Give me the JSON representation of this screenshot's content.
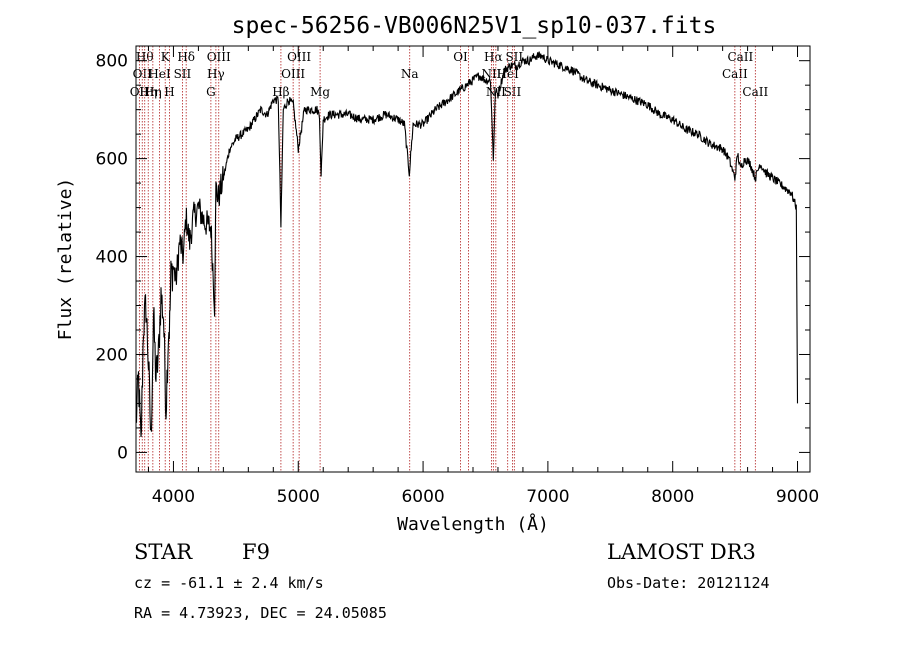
{
  "chart_data": {
    "type": "line",
    "title": "spec-56256-VB006N25V1_sp10-037.fits",
    "xlabel": "Wavelength (Å)",
    "ylabel": "Flux (relative)",
    "xlim": [
      3700,
      9100
    ],
    "ylim": [
      -40,
      830
    ],
    "x_ticks": [
      4000,
      5000,
      6000,
      7000,
      8000,
      9000
    ],
    "y_ticks": [
      0,
      200,
      400,
      600,
      800
    ],
    "x_minor_step": 200,
    "y_minor_step": 50,
    "line_color": "#000000",
    "marker_color": "#b22222",
    "spectrum": {
      "x": [
        3700,
        3720,
        3740,
        3760,
        3780,
        3800,
        3820,
        3840,
        3860,
        3880,
        3900,
        3920,
        3940,
        3960,
        3970,
        3980,
        4000,
        4020,
        4050,
        4080,
        4100,
        4130,
        4160,
        4200,
        4250,
        4300,
        4330,
        4340,
        4360,
        4400,
        4450,
        4500,
        4550,
        4600,
        4650,
        4700,
        4750,
        4800,
        4840,
        4861,
        4880,
        4920,
        4960,
        5000,
        5050,
        5100,
        5150,
        5170,
        5183,
        5200,
        5250,
        5300,
        5400,
        5500,
        5600,
        5700,
        5800,
        5850,
        5890,
        5920,
        6000,
        6100,
        6200,
        6300,
        6400,
        6450,
        6500,
        6540,
        6563,
        6580,
        6600,
        6650,
        6700,
        6750,
        6800,
        6850,
        6900,
        6950,
        7000,
        7100,
        7200,
        7300,
        7400,
        7500,
        7600,
        7700,
        7800,
        7900,
        8000,
        8100,
        8200,
        8300,
        8400,
        8450,
        8498,
        8520,
        8542,
        8580,
        8620,
        8662,
        8700,
        8750,
        8800,
        8850,
        8900,
        8950,
        8990,
        9000
      ],
      "y": [
        60,
        150,
        10,
        260,
        300,
        180,
        20,
        280,
        150,
        200,
        320,
        280,
        90,
        250,
        260,
        360,
        380,
        350,
        430,
        400,
        480,
        430,
        480,
        500,
        470,
        460,
        300,
        540,
        520,
        560,
        620,
        640,
        650,
        660,
        680,
        700,
        690,
        720,
        720,
        460,
        700,
        720,
        710,
        620,
        700,
        700,
        700,
        690,
        560,
        680,
        690,
        690,
        690,
        680,
        680,
        690,
        680,
        670,
        570,
        670,
        670,
        700,
        720,
        740,
        760,
        770,
        760,
        760,
        600,
        740,
        730,
        780,
        790,
        790,
        800,
        800,
        810,
        810,
        800,
        790,
        780,
        760,
        750,
        740,
        730,
        720,
        710,
        690,
        680,
        660,
        650,
        630,
        620,
        600,
        560,
        610,
        580,
        600,
        590,
        560,
        590,
        570,
        560,
        550,
        540,
        530,
        500,
        100
      ]
    },
    "lines": [
      {
        "wave": 3727,
        "label": "OII",
        "row": 3
      },
      {
        "wave": 3750,
        "label": "OII",
        "row": 2
      },
      {
        "wave": 3770,
        "label": "Hθ",
        "row": 1
      },
      {
        "wave": 3798,
        "label": "Hη",
        "row": 3
      },
      {
        "wave": 3835,
        "label": "Hη",
        "row": 3
      },
      {
        "wave": 3889,
        "label": "HeI",
        "row": 2
      },
      {
        "wave": 3934,
        "label": "K",
        "row": 1
      },
      {
        "wave": 3968,
        "label": "H",
        "row": 3
      },
      {
        "wave": 4072,
        "label": "SII",
        "row": 2
      },
      {
        "wave": 4102,
        "label": "Hδ",
        "row": 1
      },
      {
        "wave": 4300,
        "label": "G",
        "row": 3
      },
      {
        "wave": 4340,
        "label": "Hγ",
        "row": 2
      },
      {
        "wave": 4363,
        "label": "OIII",
        "row": 1
      },
      {
        "wave": 4861,
        "label": "Hβ",
        "row": 3
      },
      {
        "wave": 4959,
        "label": "OIII",
        "row": 2
      },
      {
        "wave": 5007,
        "label": "OIII",
        "row": 1
      },
      {
        "wave": 5175,
        "label": "Mg",
        "row": 3
      },
      {
        "wave": 5893,
        "label": "Na",
        "row": 2
      },
      {
        "wave": 6300,
        "label": "OI",
        "row": 1
      },
      {
        "wave": 6364,
        "label": "",
        "row": 0
      },
      {
        "wave": 6548,
        "label": "NII",
        "row": 2
      },
      {
        "wave": 6563,
        "label": "Hα",
        "row": 1
      },
      {
        "wave": 6583,
        "label": "NII",
        "row": 3
      },
      {
        "wave": 6678,
        "label": "HeI",
        "row": 2
      },
      {
        "wave": 6716,
        "label": "SII",
        "row": 3
      },
      {
        "wave": 6731,
        "label": "SII",
        "row": 1
      },
      {
        "wave": 8498,
        "label": "CaII",
        "row": 2
      },
      {
        "wave": 8542,
        "label": "CaII",
        "row": 1
      },
      {
        "wave": 8662,
        "label": "CaII",
        "row": 3
      }
    ]
  },
  "info": {
    "class_type": "STAR",
    "subclass": "F9",
    "survey": "LAMOST DR3",
    "cz_line": "cz = -61.1 ± 2.4 km/s",
    "obs_date_line": "Obs-Date: 20121124",
    "coord_line": "RA =   4.73923, DEC =  24.05085"
  }
}
